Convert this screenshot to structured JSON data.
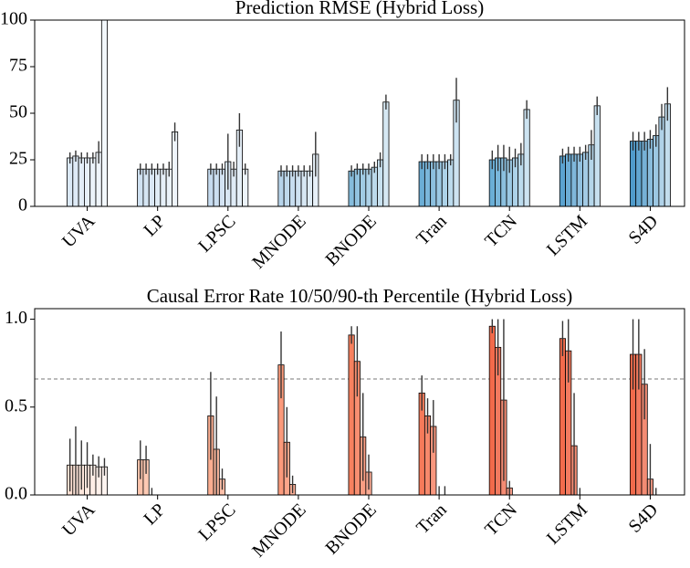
{
  "chart_data": [
    {
      "type": "bar",
      "title": "Prediction RMSE (Hybrid Loss)",
      "categories": [
        "UVA",
        "LP",
        "LPSC",
        "MNODE",
        "BNODE",
        "Tran",
        "TCN",
        "LSTM",
        "S4D"
      ],
      "colors": [
        "#dbe9f6",
        "#d0e2f2",
        "#c6dbef",
        "#b7d4ea",
        "#85bcdc",
        "#6baed6",
        "#6aaed6",
        "#5ba3d0",
        "#4f9bcb"
      ],
      "series": [
        {
          "values": [
            26,
            20,
            20,
            19,
            19,
            24,
            25,
            27,
            35
          ],
          "errors": [
            3,
            3,
            3,
            3,
            3,
            4,
            5,
            4,
            5
          ]
        },
        {
          "values": [
            27,
            20,
            20,
            19,
            20,
            24,
            26,
            28,
            35
          ],
          "errors": [
            3,
            3,
            3,
            3,
            3,
            4,
            7,
            4,
            5
          ]
        },
        {
          "values": [
            26,
            20,
            20,
            19,
            20,
            24,
            26,
            28,
            35
          ],
          "errors": [
            3,
            3,
            3,
            3,
            3,
            4,
            7,
            4,
            5
          ]
        },
        {
          "values": [
            26,
            20,
            24,
            19,
            20,
            24,
            25,
            28,
            36
          ],
          "errors": [
            3,
            3,
            15,
            3,
            3,
            4,
            7,
            4,
            5
          ]
        },
        {
          "values": [
            26,
            20,
            20,
            19,
            21,
            24,
            26,
            29,
            38
          ],
          "errors": [
            3,
            3,
            4,
            3,
            3,
            4,
            5,
            4,
            6
          ]
        },
        {
          "values": [
            29,
            20,
            41,
            19,
            25,
            25,
            28,
            33,
            48
          ],
          "errors": [
            6,
            4,
            9,
            3,
            4,
            3,
            6,
            8,
            7
          ]
        },
        {
          "values": [
            100,
            40,
            20,
            28,
            56,
            57,
            52,
            54,
            55
          ],
          "errors": [
            0,
            5,
            3,
            12,
            4,
            12,
            5,
            5,
            9
          ]
        }
      ],
      "ylim": [
        0,
        100
      ],
      "yticks": [
        0,
        25,
        50,
        75,
        100
      ]
    },
    {
      "type": "bar",
      "title": "Causal Error Rate 10/50/90-th Percentile (Hybrid Loss)",
      "categories": [
        "UVA",
        "LP",
        "LPSC",
        "MNODE",
        "BNODE",
        "Tran",
        "TCN",
        "LSTM",
        "S4D"
      ],
      "colors": [
        "#fee0d2",
        "#fcc3ab",
        "#fcae91",
        "#fb9a7b",
        "#f7815f",
        "#f67a5a",
        "#f26a4b",
        "#f26b4c",
        "#f06a4b"
      ],
      "series": [
        {
          "values": [
            0.17,
            0.2,
            0.45,
            0.74,
            0.91,
            0.58,
            0.96,
            0.89,
            0.8
          ],
          "errors": [
            0.15,
            0.11,
            0.25,
            0.19,
            0.05,
            0.1,
            0.04,
            0.1,
            0.2
          ]
        },
        {
          "values": [
            0.17,
            0.2,
            0.26,
            0.3,
            0.76,
            0.45,
            0.84,
            0.82,
            0.8
          ],
          "errors": [
            0.22,
            0.08,
            0.3,
            0.2,
            0.2,
            0.1,
            0.16,
            0.18,
            0.2
          ]
        },
        {
          "values": [
            0.17,
            0,
            0.09,
            0.06,
            0.33,
            0.39,
            0.54,
            0.28,
            0.63
          ],
          "errors": [
            0.14,
            0.04,
            0.06,
            0.05,
            0.25,
            0.15,
            0.46,
            0.3,
            0.2
          ]
        },
        {
          "values": [
            0.17,
            0,
            0,
            0,
            0.13,
            0,
            0.04,
            0,
            0.09
          ],
          "errors": [
            0.13,
            0,
            0,
            0,
            0.1,
            0.05,
            0.04,
            0.04,
            0.2
          ]
        },
        {
          "values": [
            0.17,
            0,
            0,
            0,
            0,
            0,
            0,
            0,
            0
          ],
          "errors": [
            0.06,
            0,
            0,
            0,
            0,
            0.05,
            0,
            0,
            0.04
          ]
        },
        {
          "values": [
            0.16,
            0,
            0,
            0,
            0,
            0,
            0,
            0,
            0
          ],
          "errors": [
            0.06,
            0,
            0,
            0,
            0,
            0,
            0,
            0,
            0
          ]
        },
        {
          "values": [
            0.16,
            0,
            0,
            0,
            0,
            0,
            0,
            0,
            0
          ],
          "errors": [
            0.05,
            0,
            0,
            0,
            0,
            0,
            0,
            0,
            0
          ]
        }
      ],
      "hline": 0.66,
      "ylim": [
        0,
        1.06
      ],
      "yticks": [
        {
          "value": 0,
          "label": "0.0"
        },
        {
          "value": 0.5,
          "label": "0.5"
        },
        {
          "value": 1,
          "label": "1.0"
        }
      ]
    }
  ]
}
